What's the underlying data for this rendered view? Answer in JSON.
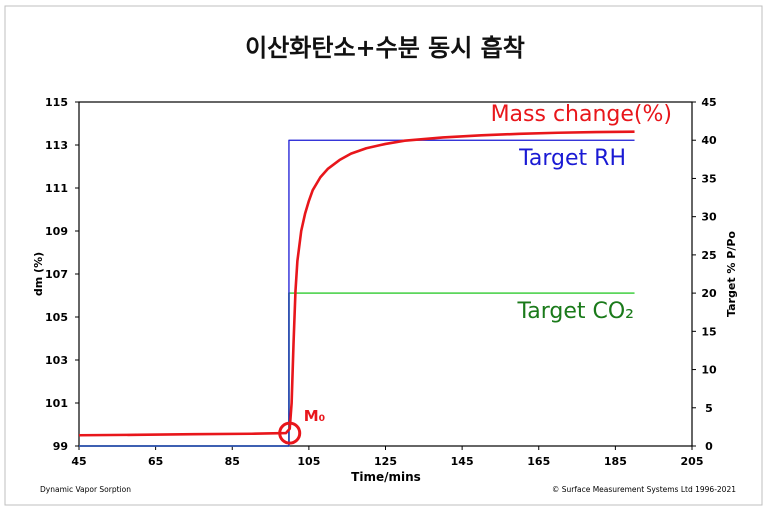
{
  "chart_data": {
    "type": "line",
    "title": "이산화탄소+수분 동시 흡착",
    "xlabel": "Time/mins",
    "ylabel": "dm (%)",
    "y2label": "Target % P/Po",
    "xlim": [
      45,
      205
    ],
    "ylim": [
      99,
      115
    ],
    "y2lim": [
      0,
      45
    ],
    "xticks": [
      "45",
      "65",
      "85",
      "105",
      "125",
      "145",
      "165",
      "185",
      "205"
    ],
    "yticks": [
      "99",
      "101",
      "103",
      "105",
      "107",
      "109",
      "111",
      "113",
      "115"
    ],
    "y2ticks": [
      "0",
      "5",
      "10",
      "15",
      "20",
      "25",
      "30",
      "35",
      "40",
      "45"
    ],
    "grid": false,
    "series": [
      {
        "name": "Mass change(%)",
        "axis": "left",
        "color": "#e8161b",
        "x": [
          45,
          60,
          75,
          90,
          99,
          100,
          100.5,
          101,
          101.5,
          102,
          103,
          104,
          105,
          106,
          108,
          110,
          113,
          116,
          120,
          125,
          130,
          140,
          150,
          160,
          170,
          180,
          190
        ],
        "y": [
          99.5,
          99.52,
          99.55,
          99.57,
          99.6,
          99.8,
          101.0,
          103.8,
          106.2,
          107.6,
          109.0,
          109.8,
          110.4,
          110.9,
          111.5,
          111.9,
          112.3,
          112.6,
          112.85,
          113.05,
          113.2,
          113.35,
          113.45,
          113.52,
          113.57,
          113.6,
          113.62
        ]
      },
      {
        "name": "Target RH",
        "axis": "right",
        "color": "#1a1ad4",
        "x": [
          45,
          99.8,
          99.8,
          190
        ],
        "y": [
          0,
          0,
          40,
          40
        ]
      },
      {
        "name": "Target CO₂",
        "axis": "right",
        "color": "#5cd65c",
        "x": [
          45,
          99.8,
          99.8,
          190
        ],
        "y": [
          0,
          0,
          20,
          20
        ]
      }
    ],
    "annotations": {
      "marker_label": "M₀",
      "marker_x": 100,
      "marker_y": 99.6,
      "footer_left": "Dynamic Vapor Sorption",
      "footer_right": "© Surface Measurement Systems Ltd 1996-2021"
    },
    "label_colors": {
      "mass": "#e8161b",
      "rh": "#1a1ad4",
      "co2": "#1a7a1a"
    }
  }
}
